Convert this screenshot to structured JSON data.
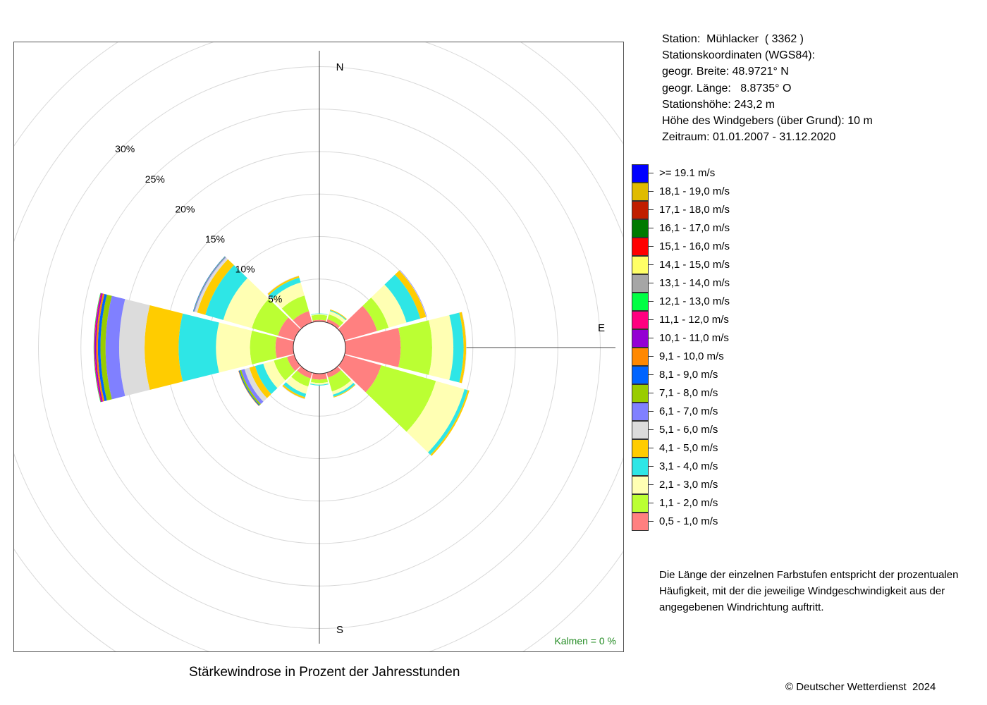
{
  "station_info": {
    "station": "Station:  Mühlacker  ( 3362 )",
    "coordinates_heading": "Stationskoordinaten (WGS84):",
    "latitude": "geogr. Breite: 48.9721° N",
    "longitude": "geogr. Länge:   8.8735° O",
    "elevation": "Stationshöhe: 243,2 m",
    "sensor_height": "Höhe des Windgebers (über Grund): 10 m",
    "period": "Zeitraum: 01.01.2007 - 31.12.2020"
  },
  "legend": [
    {
      "label": ">= 19.1 m/s",
      "color": "#0000ff"
    },
    {
      "label": "18,1 - 19,0 m/s",
      "color": "#e0bb00"
    },
    {
      "label": "17,1 - 18,0 m/s",
      "color": "#c01e00"
    },
    {
      "label": "16,1 - 17,0 m/s",
      "color": "#007a00"
    },
    {
      "label": "15,1 - 16,0 m/s",
      "color": "#ff0000"
    },
    {
      "label": "14,1 - 15,0 m/s",
      "color": "#ffff66"
    },
    {
      "label": "13,1 - 14,0 m/s",
      "color": "#a6a6a6"
    },
    {
      "label": "12,1 - 13,0 m/s",
      "color": "#00ff44"
    },
    {
      "label": "11,1 - 12,0 m/s",
      "color": "#ff0080"
    },
    {
      "label": "10,1 - 11,0 m/s",
      "color": "#9400d3"
    },
    {
      "label": "9,1 - 10,0 m/s",
      "color": "#ff8800"
    },
    {
      "label": "8,1 - 9,0 m/s",
      "color": "#0064ff"
    },
    {
      "label": "7,1 - 8,0 m/s",
      "color": "#99cc00"
    },
    {
      "label": "6,1 - 7,0 m/s",
      "color": "#8080ff"
    },
    {
      "label": "5,1 - 6,0 m/s",
      "color": "#dcdcdc"
    },
    {
      "label": "4,1 - 5,0 m/s",
      "color": "#ffcc00"
    },
    {
      "label": "3,1 - 4,0 m/s",
      "color": "#2ee6e6"
    },
    {
      "label": "2,1 - 3,0 m/s",
      "color": "#ffffb3"
    },
    {
      "label": "1,1 - 2,0 m/s",
      "color": "#bbff33"
    },
    {
      "label": "0,5 - 1,0 m/s",
      "color": "#ff8080"
    }
  ],
  "note_lines": [
    "Die Länge der einzelnen Farbstufen entspricht der prozentualen",
    "Häufigkeit, mit der die jeweilige Windgeschwindigkeit aus der",
    "angegebenen Windrichtung auftritt."
  ],
  "caption": "Stärkewindrose in Prozent der Jahresstunden",
  "copyright": "© Deutscher Wetterdienst  2024",
  "chart_data": {
    "type": "wind_rose",
    "title": "Stärkewindrose in Prozent der Jahresstunden",
    "unit": "%",
    "ring_labels": [
      "5%",
      "10%",
      "15%",
      "20%",
      "25%",
      "30%"
    ],
    "ring_values": [
      5,
      10,
      15,
      20,
      25,
      30
    ],
    "r_max": 30,
    "directions": [
      "N",
      "E",
      "S"
    ],
    "calm_label": "Kalmen  =  0 %",
    "calm_value": 0,
    "sector_angles_deg": [
      0,
      30,
      60,
      90,
      120,
      150,
      180,
      210,
      240,
      270,
      300,
      330
    ],
    "speed_classes": [
      "0,5 - 1,0 m/s",
      "1,1 - 2,0 m/s",
      "2,1 - 3,0 m/s",
      "3,1 - 4,0 m/s",
      "4,1 - 5,0 m/s",
      "5,1 - 6,0 m/s",
      "6,1 - 7,0 m/s",
      "7,1 - 8,0 m/s",
      "8,1 - 9,0 m/s",
      "9,1 - 10,0 m/s",
      "10,1 - 11,0 m/s",
      "11,1 - 12,0 m/s",
      "12,1 - 13,0 m/s",
      "13,1 - 14,0 m/s",
      "14,1 - 15,0 m/s",
      "15,1 - 16,0 m/s",
      "16,1 - 17,0 m/s",
      "17,1 - 18,0 m/s",
      "18,1 - 19,0 m/s",
      ">= 19.1 m/s"
    ],
    "class_colors": [
      "#ff8080",
      "#bbff33",
      "#ffffb3",
      "#2ee6e6",
      "#ffcc00",
      "#dcdcdc",
      "#8080ff",
      "#99cc00",
      "#0064ff",
      "#ff8800",
      "#9400d3",
      "#ff0080",
      "#00ff44",
      "#a6a6a6",
      "#ffff66",
      "#ff0000",
      "#007a00",
      "#c01e00",
      "#e0bb00",
      "#0000ff"
    ],
    "sectors": [
      {
        "dir_deg": 0,
        "values": [
          0.2,
          0.6,
          0.1,
          0.05
        ]
      },
      {
        "dir_deg": 30,
        "values": [
          0.4,
          0.6,
          0.4,
          0.1,
          0.1
        ]
      },
      {
        "dir_deg": 60,
        "values": [
          4.0,
          1.4,
          2.2,
          1.7,
          0.7,
          0.05,
          0.05
        ]
      },
      {
        "dir_deg": 90,
        "values": [
          6.5,
          3.7,
          2.5,
          1.2,
          0.3,
          0.05
        ]
      },
      {
        "dir_deg": 120,
        "values": [
          4.5,
          6.7,
          3.5,
          0.4,
          0.2
        ]
      },
      {
        "dir_deg": 150,
        "values": [
          0.6,
          1.7,
          0.4,
          0.25,
          0.1
        ]
      },
      {
        "dir_deg": 180,
        "values": [
          0.7,
          0.4,
          0.2,
          0.1
        ]
      },
      {
        "dir_deg": 210,
        "values": [
          0.7,
          1.0,
          0.9,
          0.4,
          0.2,
          0.05
        ]
      },
      {
        "dir_deg": 240,
        "values": [
          0.9,
          1.6,
          1.3,
          1.0,
          0.7,
          0.6,
          0.4,
          0.2,
          0.1,
          0.05
        ]
      },
      {
        "dir_deg": 270,
        "values": [
          2.1,
          3.0,
          4.0,
          4.4,
          4.0,
          3.0,
          1.6,
          0.6,
          0.3,
          0.2,
          0.15,
          0.1,
          0.05
        ]
      },
      {
        "dir_deg": 300,
        "values": [
          2.0,
          3.2,
          3.5,
          2.2,
          1.0,
          0.3,
          0.1,
          0.05,
          0.05
        ]
      },
      {
        "dir_deg": 330,
        "values": [
          1.4,
          1.9,
          1.6,
          0.6,
          0.2,
          0.05
        ]
      }
    ]
  }
}
